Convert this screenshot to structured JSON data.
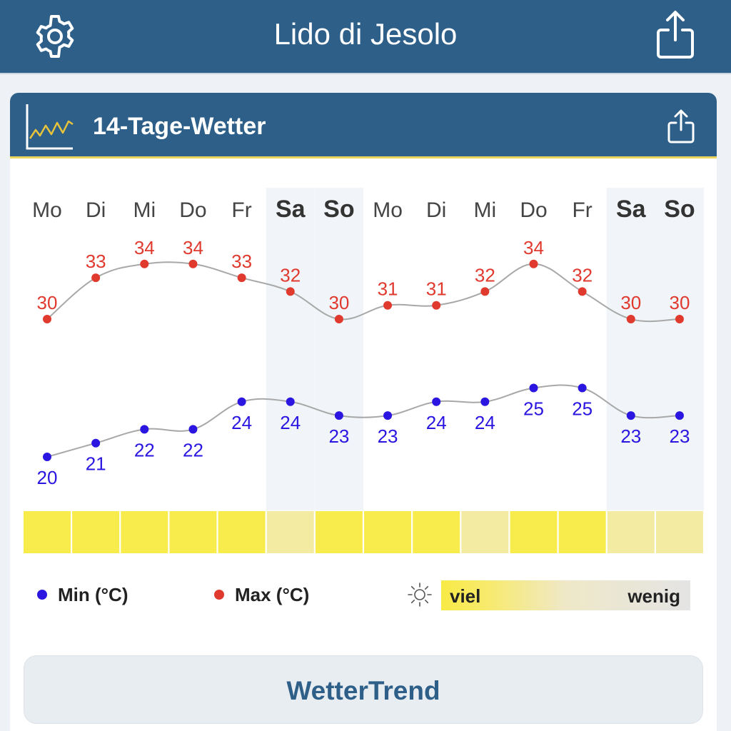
{
  "header": {
    "title": "Lido di Jesolo",
    "settings_icon": "gear-icon",
    "share_icon": "share-icon"
  },
  "card": {
    "title": "14-Tage-Wetter",
    "icon": "line-chart-icon",
    "share_icon": "share-icon"
  },
  "chart_data": {
    "type": "line",
    "categories": [
      "Mo",
      "Di",
      "Mi",
      "Do",
      "Fr",
      "Sa",
      "So",
      "Mo",
      "Di",
      "Mi",
      "Do",
      "Fr",
      "Sa",
      "So"
    ],
    "weekend": [
      false,
      false,
      false,
      false,
      false,
      true,
      true,
      false,
      false,
      false,
      false,
      false,
      true,
      true
    ],
    "series": [
      {
        "name": "Max (°C)",
        "color": "#e03a2f",
        "values": [
          30,
          33,
          34,
          34,
          33,
          32,
          30,
          31,
          31,
          32,
          34,
          32,
          30,
          30
        ]
      },
      {
        "name": "Min (°C)",
        "color": "#2a16e0",
        "values": [
          20,
          21,
          22,
          22,
          24,
          24,
          23,
          23,
          24,
          24,
          25,
          25,
          23,
          23
        ]
      }
    ],
    "sunshine": [
      "viel",
      "viel",
      "viel",
      "viel",
      "viel",
      "mittel",
      "viel",
      "viel",
      "viel",
      "mittel",
      "viel",
      "viel",
      "mittel",
      "mittel"
    ],
    "sunshine_colors": {
      "viel": "#f8ec4c",
      "mittel": "#f3eba1"
    }
  },
  "legend": {
    "min_label": "Min (°C)",
    "max_label": "Max (°C)",
    "min_color": "#2a16e0",
    "max_color": "#e03a2f",
    "sun_icon": "sun-icon",
    "sun_high": "viel",
    "sun_low": "wenig"
  },
  "button": {
    "label": "WetterTrend"
  }
}
